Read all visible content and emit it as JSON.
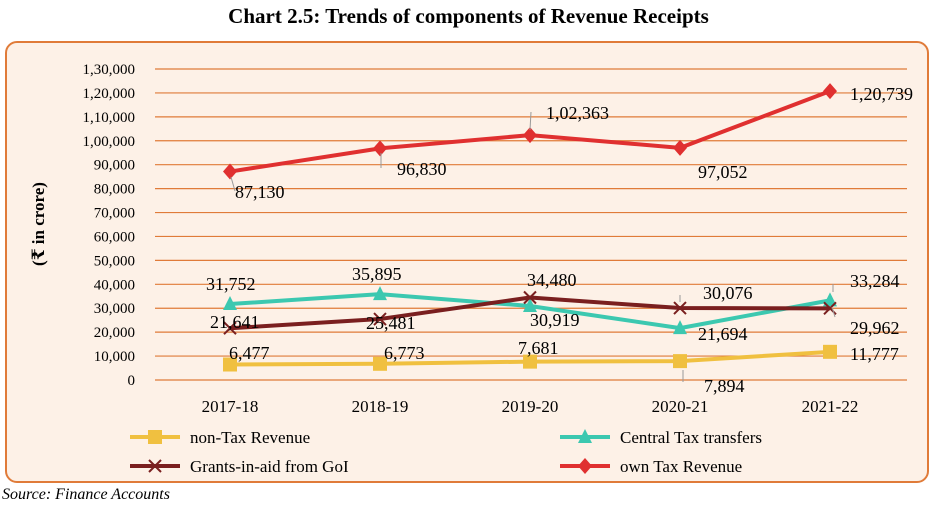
{
  "title": "Chart 2.5: Trends of components of Revenue Receipts",
  "source": "Source: Finance Accounts",
  "colors": {
    "frame_border": "#e07b39",
    "frame_background": "#fdf1e7",
    "grid": "#e07b39"
  },
  "chart_data": {
    "type": "line",
    "title": "Chart 2.5: Trends of components of Revenue Receipts",
    "ylabel": "(₹ in crore)",
    "xlabel": "",
    "categories": [
      "2017-18",
      "2018-19",
      "2019-20",
      "2020-21",
      "2021-22"
    ],
    "ylim": [
      0,
      130000
    ],
    "yticks": [
      0,
      10000,
      20000,
      30000,
      40000,
      50000,
      60000,
      70000,
      80000,
      90000,
      100000,
      110000,
      120000,
      130000
    ],
    "ytick_labels": [
      "0",
      "10,000",
      "20,000",
      "30,000",
      "40,000",
      "50,000",
      "60,000",
      "70,000",
      "80,000",
      "90,000",
      "1,00,000",
      "1,10,000",
      "1,20,000",
      "1,30,000"
    ],
    "grid": true,
    "legend_position": "bottom",
    "series": [
      {
        "name": "non-Tax Revenue",
        "color": "#f0c040",
        "marker": "square",
        "values": [
          6477,
          6773,
          7681,
          7894,
          11777
        ],
        "labels": [
          "6,477",
          "6,773",
          "7,681",
          "7,894",
          "11,777"
        ]
      },
      {
        "name": "Central Tax transfers",
        "color": "#3cc8b0",
        "marker": "triangle",
        "values": [
          31752,
          35895,
          30919,
          21694,
          33284
        ],
        "labels": [
          "31,752",
          "35,895",
          "30,919",
          "21,694",
          "33,284"
        ]
      },
      {
        "name": "Grants-in-aid from GoI",
        "color": "#7a1f1f",
        "marker": "x",
        "values": [
          21641,
          25481,
          34480,
          30076,
          29962
        ],
        "labels": [
          "21,641",
          "25,481",
          "34,480",
          "30,076",
          "29,962"
        ]
      },
      {
        "name": "own Tax Revenue",
        "color": "#e03030",
        "marker": "diamond",
        "values": [
          87130,
          96830,
          102363,
          97052,
          120739
        ],
        "labels": [
          "87,130",
          "96,830",
          "1,02,363",
          "97,052",
          "1,20,739"
        ]
      }
    ]
  }
}
